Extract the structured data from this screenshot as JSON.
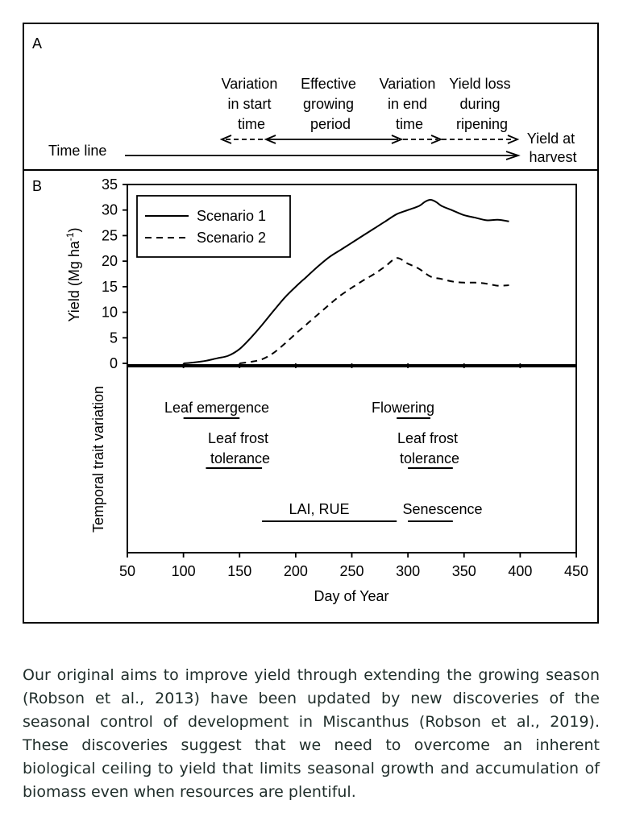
{
  "panel_a": {
    "label": "A",
    "timeline_label": "Time line",
    "phases": [
      {
        "lines": [
          "Variation",
          "in start",
          "time"
        ]
      },
      {
        "lines": [
          "Effective",
          "growing",
          "period"
        ]
      },
      {
        "lines": [
          "Variation",
          "in end",
          "time"
        ]
      },
      {
        "lines": [
          "Yield loss",
          "during",
          "ripening"
        ]
      },
      {
        "lines": [
          "Yield at",
          "harvest"
        ]
      }
    ]
  },
  "panel_b": {
    "label": "B",
    "temporal_axis_label": "Temporal trait variation",
    "traits": [
      {
        "lines": [
          "Leaf emergence"
        ],
        "start": 100,
        "end": 150
      },
      {
        "lines": [
          "Leaf frost",
          "tolerance"
        ],
        "start": 120,
        "end": 170
      },
      {
        "lines": [
          "LAI, RUE"
        ],
        "start": 170,
        "end": 290
      },
      {
        "lines": [
          "Flowering"
        ],
        "start": 290,
        "end": 320
      },
      {
        "lines": [
          "Leaf frost",
          "tolerance"
        ],
        "start": 300,
        "end": 340
      },
      {
        "lines": [
          "Senescence"
        ],
        "start": 300,
        "end": 340
      }
    ]
  },
  "chart_data": {
    "type": "line",
    "xlabel": "Day of Year",
    "ylabel": "Yield (Mg ha-1)",
    "xlim": [
      50,
      450
    ],
    "ylim": [
      0,
      35
    ],
    "xticks": [
      "50",
      "100",
      "150",
      "200",
      "250",
      "300",
      "350",
      "400",
      "450"
    ],
    "yticks": [
      "0",
      "5",
      "10",
      "15",
      "20",
      "25",
      "30",
      "35"
    ],
    "legend_position": "top-left",
    "series": [
      {
        "name": "Scenario 1",
        "style": "solid",
        "points": [
          [
            100,
            0
          ],
          [
            110,
            0.2
          ],
          [
            120,
            0.5
          ],
          [
            130,
            1.0
          ],
          [
            140,
            1.5
          ],
          [
            150,
            2.8
          ],
          [
            160,
            5.0
          ],
          [
            170,
            7.5
          ],
          [
            180,
            10.2
          ],
          [
            190,
            12.8
          ],
          [
            200,
            15.0
          ],
          [
            210,
            17.0
          ],
          [
            220,
            19.0
          ],
          [
            230,
            20.8
          ],
          [
            240,
            22.2
          ],
          [
            250,
            23.6
          ],
          [
            260,
            25.0
          ],
          [
            270,
            26.4
          ],
          [
            280,
            27.8
          ],
          [
            290,
            29.2
          ],
          [
            300,
            30.0
          ],
          [
            310,
            30.8
          ],
          [
            315,
            31.6
          ],
          [
            320,
            32.0
          ],
          [
            325,
            31.6
          ],
          [
            330,
            30.8
          ],
          [
            340,
            29.9
          ],
          [
            350,
            29.0
          ],
          [
            360,
            28.5
          ],
          [
            370,
            28.0
          ],
          [
            380,
            28.1
          ],
          [
            390,
            27.8
          ]
        ]
      },
      {
        "name": "Scenario 2",
        "style": "dashed",
        "points": [
          [
            150,
            0
          ],
          [
            160,
            0.3
          ],
          [
            170,
            0.8
          ],
          [
            180,
            2.0
          ],
          [
            190,
            3.8
          ],
          [
            200,
            5.8
          ],
          [
            210,
            7.7
          ],
          [
            220,
            9.6
          ],
          [
            230,
            11.5
          ],
          [
            240,
            13.3
          ],
          [
            250,
            14.8
          ],
          [
            260,
            16.2
          ],
          [
            270,
            17.5
          ],
          [
            280,
            19.0
          ],
          [
            290,
            20.6
          ],
          [
            300,
            19.5
          ],
          [
            310,
            18.5
          ],
          [
            320,
            17.0
          ],
          [
            330,
            16.5
          ],
          [
            340,
            16.0
          ],
          [
            350,
            15.8
          ],
          [
            360,
            15.8
          ],
          [
            370,
            15.6
          ],
          [
            380,
            15.2
          ],
          [
            390,
            15.3
          ]
        ]
      }
    ]
  },
  "caption": "Our original aims to improve yield through extending the growing season (Robson et al., 2013) have been updated by new discoveries of the seasonal control of development in Miscanthus (Robson et al., 2019). These discoveries suggest that we need to overcome an inherent biological ceiling to yield that limits seasonal growth and accumulation of biomass even when resources are plentiful."
}
